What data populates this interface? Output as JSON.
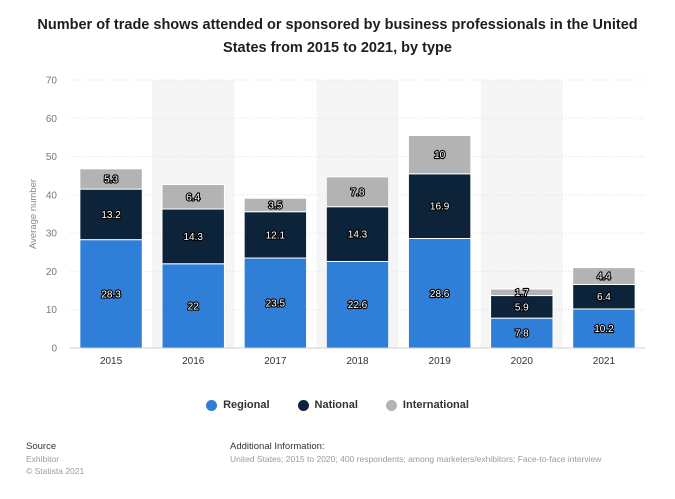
{
  "chart_data": {
    "type": "bar",
    "stacked": true,
    "title": "Number of trade shows attended or sponsored by business professionals in the United States from 2015 to 2021, by type",
    "xlabel": "",
    "ylabel": "Average number",
    "ylim": [
      0,
      70
    ],
    "yticks": [
      0,
      10,
      20,
      30,
      40,
      50,
      60,
      70
    ],
    "categories": [
      "2015",
      "2016",
      "2017",
      "2018",
      "2019",
      "2020",
      "2021"
    ],
    "series": [
      {
        "name": "Regional",
        "color": "#2f7ed8",
        "values": [
          28.3,
          22,
          23.5,
          22.6,
          28.6,
          7.8,
          10.2
        ]
      },
      {
        "name": "National",
        "color": "#0d233a",
        "values": [
          13.2,
          14.3,
          12.1,
          14.3,
          16.9,
          5.9,
          6.4
        ]
      },
      {
        "name": "International",
        "color": "#b3b3b3",
        "values": [
          5.3,
          6.4,
          3.5,
          7.8,
          10,
          1.7,
          4.4
        ]
      }
    ],
    "legend_position": "bottom-center"
  },
  "footer": {
    "source_heading": "Source",
    "source_lines": [
      "Exhibitor",
      "© Statista 2021"
    ],
    "info_heading": "Additional Information:",
    "info_text": "United States; 2015 to 2020; 400 respondents; among marketers/exhibitors; Face-to-face interview"
  }
}
